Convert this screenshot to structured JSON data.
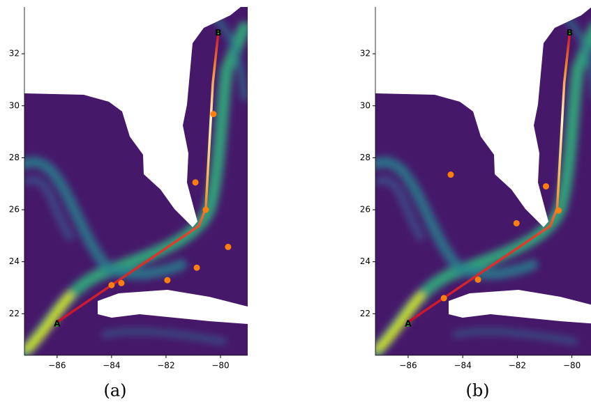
{
  "chart_data": [
    {
      "type": "scatter",
      "caption": "(a)",
      "xlim": [
        -87.2,
        -79.0
      ],
      "ylim": [
        20.4,
        33.8
      ],
      "xticks": [
        {
          "value": -86,
          "label": "−86"
        },
        {
          "value": -84,
          "label": "−84"
        },
        {
          "value": -82,
          "label": "−82"
        },
        {
          "value": -80,
          "label": "−80"
        }
      ],
      "yticks": [
        22,
        24,
        26,
        28,
        30,
        32
      ],
      "route": {
        "color": "#c8102e",
        "x": [
          -86.0,
          -80.79,
          -80.54,
          -80.28,
          -80.08
        ],
        "y": [
          21.68,
          25.38,
          26.05,
          30.88,
          32.8
        ]
      },
      "annotations": [
        {
          "text": "A",
          "x": -86.0,
          "y": 21.6
        },
        {
          "text": "B",
          "x": -80.08,
          "y": 32.8
        }
      ],
      "series": [
        {
          "color": "#ff7f0e",
          "x": [
            -80.92,
            -80.26,
            -80.54,
            -79.72,
            -80.87,
            -81.95,
            -83.64,
            -84.0
          ],
          "y": [
            27.05,
            29.68,
            26.0,
            24.57,
            23.77,
            23.29,
            23.18,
            23.1
          ]
        }
      ]
    },
    {
      "type": "scatter",
      "caption": "(b)",
      "xlim": [
        -87.2,
        -79.3
      ],
      "ylim": [
        20.4,
        33.8
      ],
      "xticks": [
        {
          "value": -86,
          "label": "−86"
        },
        {
          "value": -84,
          "label": "−84"
        },
        {
          "value": -82,
          "label": "−82"
        },
        {
          "value": -80,
          "label": "−80"
        }
      ],
      "yticks": [
        22,
        24,
        26,
        28,
        30,
        32
      ],
      "route": {
        "color": "#c8102e",
        "x": [
          -86.0,
          -80.79,
          -80.54,
          -80.28,
          -80.08
        ],
        "y": [
          21.68,
          25.38,
          26.05,
          30.88,
          32.8
        ]
      },
      "annotations": [
        {
          "text": "A",
          "x": -86.0,
          "y": 21.6
        },
        {
          "text": "B",
          "x": -80.08,
          "y": 32.8
        }
      ],
      "series": [
        {
          "color": "#ff7f0e",
          "x": [
            -84.44,
            -80.95,
            -82.03,
            -80.49,
            -83.44,
            -84.69
          ],
          "y": [
            27.35,
            26.9,
            25.48,
            25.97,
            23.31,
            22.6
          ]
        }
      ]
    }
  ]
}
